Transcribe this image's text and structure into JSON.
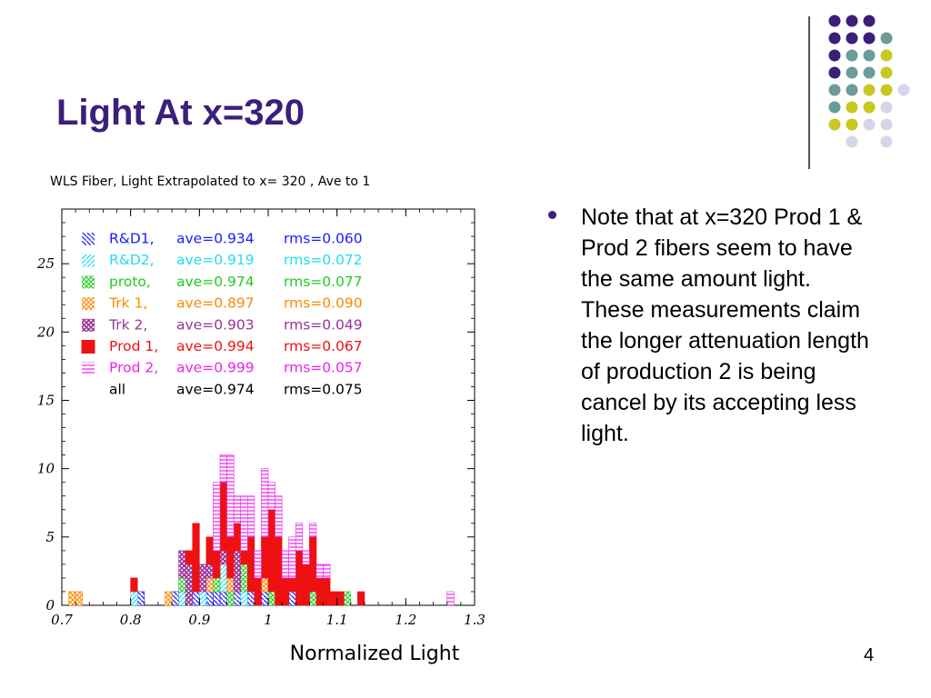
{
  "slide": {
    "title": "Light At x=320",
    "bullet": "Note that at x=320 Prod 1 & Prod 2 fibers seem to have the same amount light. These measurements claim the longer attenuation length of production 2 is being cancel by its accepting less light.",
    "page_number": "4"
  },
  "decor": {
    "dot_colors": {
      "purple": "#3b1f7a",
      "teal": "#6b9b9b",
      "yellow": "#c8c820",
      "lavender": "#d6d6ea"
    },
    "dot_grid": [
      [
        "purple",
        "purple",
        "purple",
        null
      ],
      [
        "purple",
        "purple",
        "purple",
        "teal"
      ],
      [
        "purple",
        "teal",
        "teal",
        "yellow"
      ],
      [
        "purple",
        "teal",
        "teal",
        "yellow",
        null
      ],
      [
        "teal",
        "teal",
        "yellow",
        "yellow",
        "lavender"
      ],
      [
        "teal",
        "yellow",
        "yellow",
        "lavender"
      ],
      [
        "yellow",
        "yellow",
        "lavender",
        "lavender"
      ],
      [
        null,
        "lavender",
        null,
        "lavender"
      ]
    ]
  },
  "chart_data": {
    "type": "bar",
    "title": "WLS Fiber, Light Extrapolated to x= 320 , Ave to 1",
    "xlabel": "Normalized Light",
    "ylabel": "",
    "xlim": [
      0.7,
      1.3
    ],
    "ylim": [
      0,
      29
    ],
    "bin_width": 0.01,
    "x_ticks": [
      "0.7",
      "0.8",
      "0.9",
      "1",
      "1.1",
      "1.2",
      "1.3"
    ],
    "y_ticks": [
      "0",
      "5",
      "10",
      "15",
      "20",
      "25"
    ],
    "legend_placement": "top-left",
    "legend": [
      {
        "name": "R&D1,",
        "ave": "ave=0.934",
        "rms": "rms=0.060",
        "color": "#1a1aff",
        "pattern": "diag-back"
      },
      {
        "name": "R&D2,",
        "ave": "ave=0.919",
        "rms": "rms=0.072",
        "color": "#22ddee",
        "pattern": "diag-fwd"
      },
      {
        "name": "proto,",
        "ave": "ave=0.974",
        "rms": "rms=0.077",
        "color": "#22cc22",
        "pattern": "cross"
      },
      {
        "name": "Trk 1,",
        "ave": "ave=0.897",
        "rms": "rms=0.090",
        "color": "#ff8800",
        "pattern": "cross"
      },
      {
        "name": "Trk 2,",
        "ave": "ave=0.903",
        "rms": "rms=0.049",
        "color": "#993399",
        "pattern": "cross-dense"
      },
      {
        "name": "Prod 1,",
        "ave": "ave=0.994",
        "rms": "rms=0.067",
        "color": "#ee1111",
        "pattern": "solid"
      },
      {
        "name": "Prod 2,",
        "ave": "ave=0.999",
        "rms": "rms=0.057",
        "color": "#ee22ee",
        "pattern": "hlines"
      },
      {
        "name": "all",
        "ave": "ave=0.974",
        "rms": "rms=0.075",
        "color": "#000000",
        "pattern": "none"
      }
    ],
    "series": [
      {
        "name": "R&D1,",
        "values": [
          [
            0.81,
            1
          ],
          [
            0.86,
            1
          ],
          [
            0.89,
            1
          ],
          [
            0.91,
            1
          ],
          [
            0.92,
            1
          ],
          [
            0.93,
            1
          ],
          [
            0.95,
            1
          ],
          [
            0.97,
            1
          ],
          [
            0.99,
            1
          ],
          [
            1.03,
            1
          ]
        ]
      },
      {
        "name": "R&D2,",
        "values": [
          [
            0.8,
            1
          ],
          [
            0.87,
            1
          ],
          [
            0.9,
            1
          ],
          [
            0.93,
            2
          ],
          [
            0.96,
            1
          ]
        ]
      },
      {
        "name": "proto,",
        "values": [
          [
            0.87,
            1
          ],
          [
            0.92,
            1
          ],
          [
            0.94,
            1
          ],
          [
            0.96,
            2
          ],
          [
            1.0,
            1
          ],
          [
            1.06,
            1
          ],
          [
            1.11,
            1
          ]
        ]
      },
      {
        "name": "Trk 1,",
        "values": [
          [
            0.71,
            1
          ],
          [
            0.72,
            1
          ],
          [
            0.85,
            1
          ],
          [
            0.91,
            1
          ],
          [
            0.94,
            1
          ],
          [
            0.99,
            1
          ]
        ]
      },
      {
        "name": "Trk 2,",
        "values": [
          [
            0.87,
            2
          ],
          [
            0.88,
            3
          ],
          [
            0.9,
            2
          ],
          [
            0.91,
            1
          ],
          [
            0.93,
            1
          ],
          [
            0.95,
            3
          ]
        ]
      },
      {
        "name": "Prod 1,",
        "values": [
          [
            0.8,
            1
          ],
          [
            0.88,
            1
          ],
          [
            0.89,
            5
          ],
          [
            0.91,
            2
          ],
          [
            0.92,
            2
          ],
          [
            0.93,
            5
          ],
          [
            0.94,
            3
          ],
          [
            0.95,
            2
          ],
          [
            0.96,
            1
          ],
          [
            0.97,
            4
          ],
          [
            0.98,
            2
          ],
          [
            0.99,
            3
          ],
          [
            1.0,
            6
          ],
          [
            1.01,
            5
          ],
          [
            1.02,
            2
          ],
          [
            1.03,
            1
          ],
          [
            1.04,
            4
          ],
          [
            1.05,
            3
          ],
          [
            1.06,
            4
          ],
          [
            1.07,
            2
          ],
          [
            1.08,
            2
          ],
          [
            1.09,
            1
          ],
          [
            1.1,
            1
          ],
          [
            1.13,
            1
          ]
        ]
      },
      {
        "name": "Prod 2,",
        "values": [
          [
            0.92,
            5
          ],
          [
            0.93,
            2
          ],
          [
            0.94,
            6
          ],
          [
            0.95,
            2
          ],
          [
            0.96,
            4
          ],
          [
            0.97,
            3
          ],
          [
            0.98,
            2
          ],
          [
            0.99,
            5
          ],
          [
            1.0,
            2
          ],
          [
            1.01,
            3
          ],
          [
            1.02,
            2
          ],
          [
            1.03,
            3
          ],
          [
            1.04,
            2
          ],
          [
            1.05,
            1
          ],
          [
            1.06,
            1
          ],
          [
            1.07,
            1
          ],
          [
            1.08,
            1
          ],
          [
            1.26,
            1
          ]
        ]
      }
    ]
  }
}
